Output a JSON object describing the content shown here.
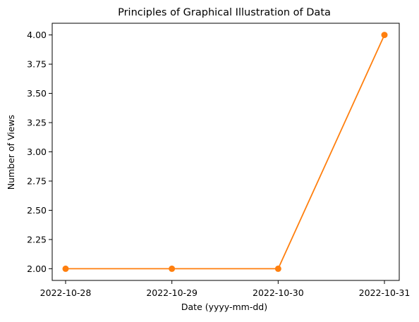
{
  "chart_data": {
    "type": "line",
    "title": "Principles of Graphical Illustration of Data",
    "xlabel": "Date (yyyy-mm-dd)",
    "ylabel": "Number of Views",
    "categories": [
      "2022-10-28",
      "2022-10-29",
      "2022-10-30",
      "2022-10-31"
    ],
    "series": [
      {
        "values": [
          2,
          2,
          2,
          4
        ],
        "color": "#ff7f0e"
      }
    ],
    "ylim": [
      1.9,
      4.1
    ],
    "yticks": [
      2.0,
      2.25,
      2.5,
      2.75,
      3.0,
      3.25,
      3.5,
      3.75,
      4.0
    ],
    "ytick_labels": [
      "2.00",
      "2.25",
      "2.50",
      "2.75",
      "3.00",
      "3.25",
      "3.50",
      "3.75",
      "4.00"
    ],
    "grid": false,
    "markers": true
  }
}
